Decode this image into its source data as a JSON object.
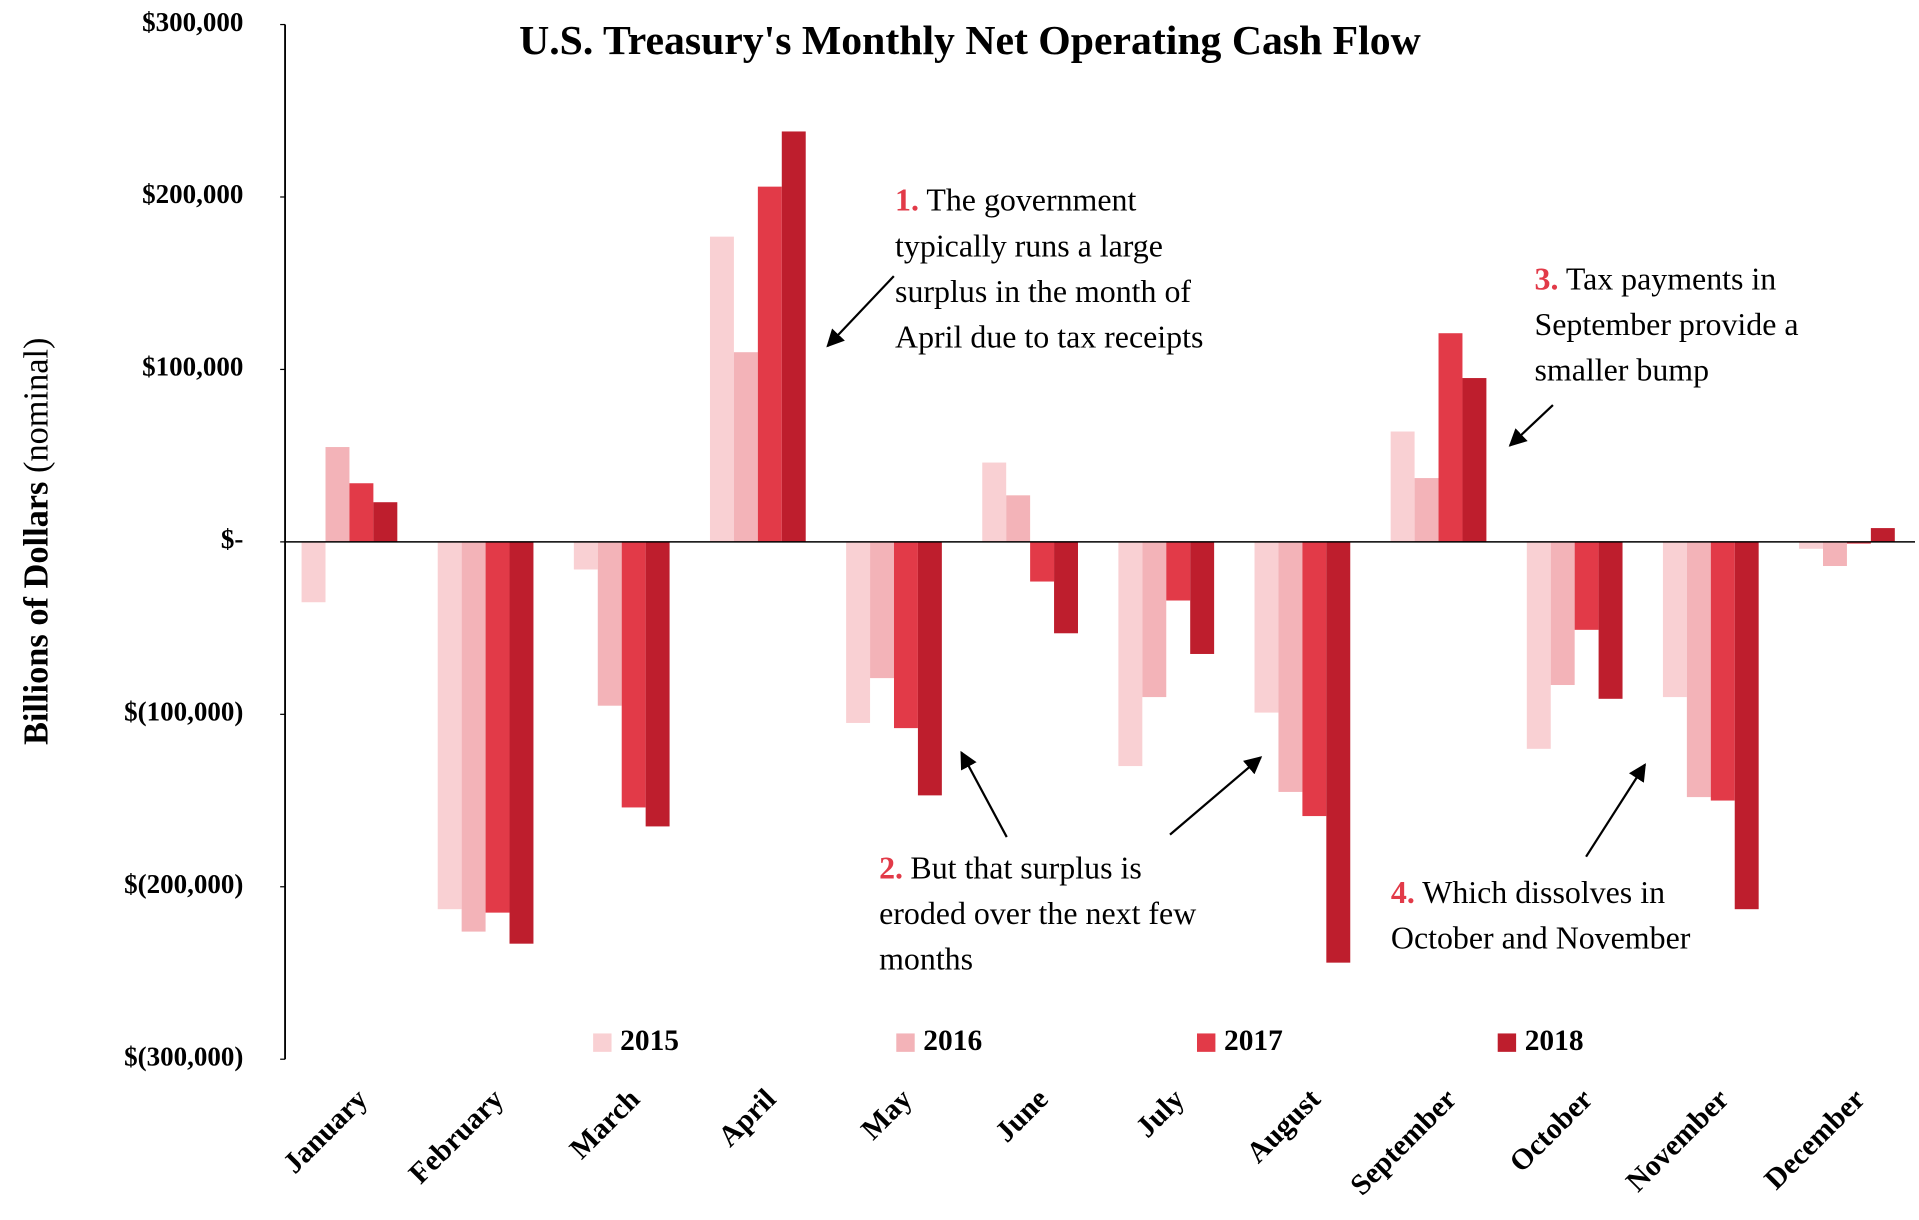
{
  "chart_data": {
    "type": "bar",
    "title": "U.S. Treasury's Monthly Net Operating Cash Flow",
    "ylabel": "Billions of Dollars",
    "ylabel_note": "(nominal)",
    "categories": [
      "January",
      "February",
      "March",
      "April",
      "May",
      "June",
      "July",
      "August",
      "September",
      "October",
      "November",
      "December"
    ],
    "series": [
      {
        "name": "2015",
        "color": "#f9d0d3",
        "values": [
          -35000,
          -213000,
          -16000,
          177000,
          -105000,
          46000,
          -130000,
          -99000,
          64000,
          -120000,
          -90000,
          -4000
        ]
      },
      {
        "name": "2016",
        "color": "#f3b3b8",
        "values": [
          55000,
          -226000,
          -95000,
          110000,
          -79000,
          27000,
          -90000,
          -145000,
          37000,
          -83000,
          -148000,
          -14000
        ]
      },
      {
        "name": "2017",
        "color": "#e23a48",
        "values": [
          34000,
          -215000,
          -154000,
          206000,
          -108000,
          -23000,
          -34000,
          -159000,
          121000,
          -51000,
          -150000,
          -1000
        ]
      },
      {
        "name": "2018",
        "color": "#be1e2d",
        "values": [
          23000,
          -233000,
          -165000,
          238000,
          -147000,
          -53000,
          -65000,
          -244000,
          95000,
          -91000,
          -213000,
          8000
        ]
      }
    ],
    "ylim": [
      -300000,
      300000
    ],
    "yticks": [
      {
        "value": 300000,
        "label": "$300,000"
      },
      {
        "value": 200000,
        "label": "$200,000"
      },
      {
        "value": 100000,
        "label": "$100,000"
      },
      {
        "value": 0,
        "label": "$-"
      },
      {
        "value": -100000,
        "label": "$(100,000)"
      },
      {
        "value": -200000,
        "label": "$(200,000)"
      },
      {
        "value": -300000,
        "label": "$(300,000)"
      }
    ],
    "legend": "bottom",
    "annotations": [
      {
        "number": "1.",
        "lines": [
          "The government",
          "typically runs a large",
          "surplus in the month of",
          "April due to tax receipts"
        ]
      },
      {
        "number": "2.",
        "lines": [
          "But that surplus is",
          "eroded over the next few",
          "months"
        ]
      },
      {
        "number": "3.",
        "lines": [
          "Tax payments in",
          "September provide a",
          "smaller bump"
        ]
      },
      {
        "number": "4.",
        "lines": [
          "Which dissolves in",
          "October and November"
        ]
      }
    ]
  }
}
